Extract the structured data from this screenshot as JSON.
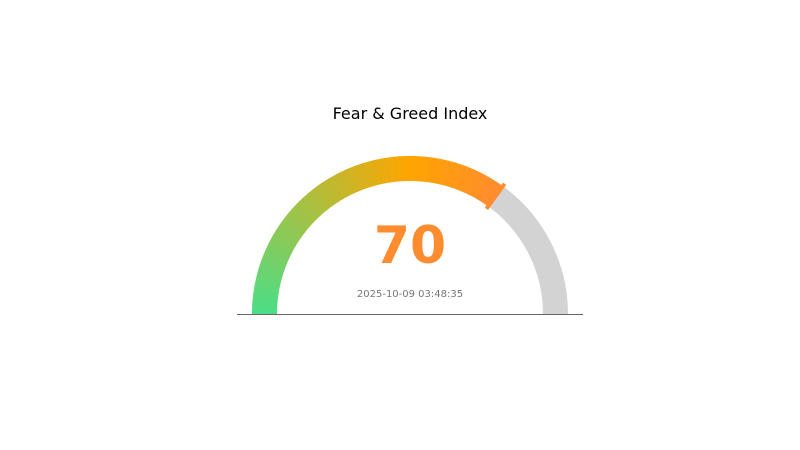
{
  "chart_data": {
    "type": "gauge",
    "title": "Fear & Greed Index",
    "value": 70,
    "range": [
      0,
      100
    ],
    "timestamp": "2025-10-09 03:48:35",
    "colors": {
      "low": "#4ade88",
      "mid": "#ffa500",
      "high": "#ff8c2e",
      "track": "#d3d3d3",
      "value_text": "#ff8c2e",
      "baseline": "#666666"
    }
  }
}
